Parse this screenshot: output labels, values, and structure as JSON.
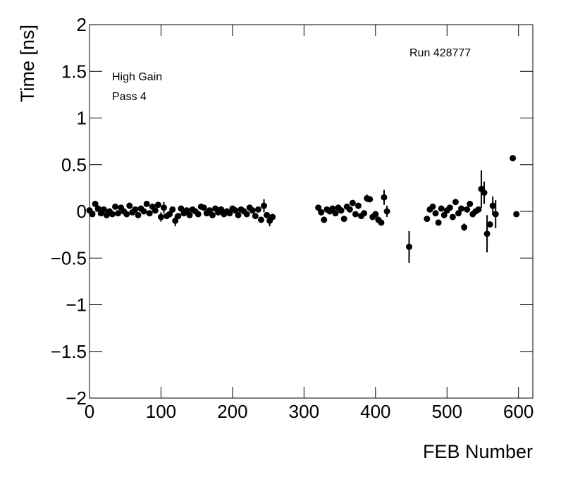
{
  "chart_data": {
    "type": "scatter",
    "x_label": "FEB Number",
    "y_label": "Time [ns]",
    "annotations": [
      "High Gain",
      "Pass 4",
      "Run 428777"
    ],
    "xlim": [
      0,
      620
    ],
    "ylim": [
      -2,
      2
    ],
    "xticks": [
      0,
      100,
      200,
      300,
      400,
      500,
      600
    ],
    "yticks": [
      {
        "value": -2,
        "label": "−2"
      },
      {
        "value": -1.5,
        "label": "−1.5"
      },
      {
        "value": -1,
        "label": "−1"
      },
      {
        "value": -0.5,
        "label": "−0.5"
      },
      0,
      0.5,
      1,
      1.5,
      2
    ],
    "color": "#000000",
    "x": [
      0,
      4,
      8,
      12,
      16,
      20,
      24,
      28,
      32,
      36,
      40,
      44,
      48,
      52,
      56,
      60,
      64,
      68,
      72,
      76,
      80,
      84,
      88,
      92,
      96,
      100,
      104,
      108,
      112,
      116,
      120,
      124,
      128,
      132,
      136,
      140,
      144,
      148,
      152,
      156,
      160,
      164,
      168,
      172,
      176,
      180,
      184,
      188,
      192,
      196,
      200,
      204,
      208,
      212,
      216,
      220,
      224,
      228,
      232,
      236,
      240,
      244,
      248,
      252,
      256,
      320,
      324,
      328,
      332,
      336,
      340,
      344,
      348,
      352,
      356,
      360,
      364,
      368,
      372,
      376,
      380,
      384,
      388,
      392,
      396,
      400,
      404,
      408,
      412,
      416,
      447,
      472,
      476,
      480,
      484,
      488,
      492,
      496,
      500,
      504,
      508,
      512,
      516,
      520,
      524,
      528,
      532,
      536,
      540,
      544,
      548,
      552,
      556,
      560,
      564,
      568,
      592,
      597
    ],
    "values": [
      0.01,
      -0.03,
      0.08,
      0.03,
      -0.02,
      0.02,
      -0.04,
      0.0,
      -0.03,
      0.05,
      -0.02,
      0.04,
      0.0,
      -0.03,
      0.06,
      -0.01,
      0.02,
      -0.04,
      0.03,
      0.0,
      0.08,
      -0.02,
      0.05,
      0.01,
      0.07,
      -0.06,
      0.04,
      -0.05,
      -0.03,
      0.02,
      -0.1,
      -0.05,
      0.03,
      -0.02,
      0.01,
      -0.04,
      0.02,
      0.0,
      -0.03,
      0.05,
      0.04,
      -0.02,
      0.01,
      -0.04,
      0.03,
      -0.01,
      0.02,
      -0.03,
      0.0,
      -0.02,
      0.03,
      0.01,
      -0.04,
      0.02,
      0.0,
      -0.03,
      0.04,
      0.01,
      -0.05,
      0.02,
      -0.09,
      0.06,
      -0.04,
      -0.1,
      -0.06,
      0.04,
      -0.01,
      -0.09,
      0.02,
      0.0,
      0.03,
      -0.02,
      0.04,
      0.01,
      -0.08,
      0.05,
      0.02,
      0.09,
      -0.03,
      0.06,
      -0.05,
      -0.02,
      0.14,
      0.13,
      -0.06,
      -0.03,
      -0.09,
      -0.12,
      0.15,
      0.0,
      -0.38,
      -0.08,
      0.02,
      0.05,
      -0.02,
      -0.12,
      0.03,
      -0.04,
      0.01,
      0.04,
      -0.06,
      0.1,
      -0.02,
      0.03,
      -0.17,
      0.02,
      0.08,
      -0.03,
      0.0,
      0.02,
      0.24,
      0.2,
      -0.24,
      -0.14,
      0.06,
      -0.03,
      0.57,
      -0.03
    ],
    "errors": [
      0.03,
      0.03,
      0.03,
      0.03,
      0.03,
      0.03,
      0.03,
      0.03,
      0.03,
      0.03,
      0.03,
      0.03,
      0.03,
      0.03,
      0.03,
      0.03,
      0.03,
      0.03,
      0.03,
      0.03,
      0.03,
      0.03,
      0.03,
      0.03,
      0.03,
      0.05,
      0.06,
      0.03,
      0.03,
      0.03,
      0.06,
      0.03,
      0.03,
      0.03,
      0.03,
      0.03,
      0.03,
      0.03,
      0.03,
      0.03,
      0.03,
      0.03,
      0.03,
      0.03,
      0.03,
      0.03,
      0.03,
      0.03,
      0.03,
      0.03,
      0.03,
      0.03,
      0.03,
      0.03,
      0.03,
      0.03,
      0.03,
      0.03,
      0.03,
      0.03,
      0.03,
      0.07,
      0.03,
      0.06,
      0.03,
      0.03,
      0.03,
      0.03,
      0.03,
      0.03,
      0.03,
      0.03,
      0.03,
      0.03,
      0.03,
      0.03,
      0.03,
      0.03,
      0.03,
      0.03,
      0.03,
      0.03,
      0.04,
      0.03,
      0.03,
      0.03,
      0.03,
      0.03,
      0.08,
      0.06,
      0.17,
      0.03,
      0.03,
      0.03,
      0.03,
      0.03,
      0.03,
      0.03,
      0.03,
      0.03,
      0.03,
      0.03,
      0.03,
      0.03,
      0.04,
      0.03,
      0.03,
      0.03,
      0.03,
      0.03,
      0.2,
      0.12,
      0.2,
      0.03,
      0.1,
      0.15,
      0.02,
      0.02
    ]
  }
}
